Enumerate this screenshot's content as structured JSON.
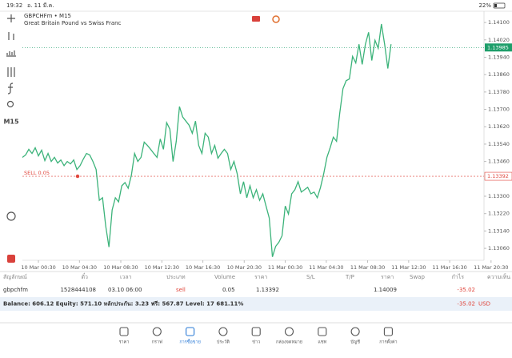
{
  "status_bar": {
    "time": "19:32",
    "date": "อ. 11 มี.ค.",
    "battery": "22%"
  },
  "chart_data": {
    "type": "line",
    "title": "GBPCHFm • M15",
    "subtitle": "Great Britain Pound vs Swiss Franc",
    "timeframe": "M15",
    "color": "#3cb37a",
    "values": [
      1.13479,
      1.1349,
      1.13516,
      1.13497,
      1.13523,
      1.13486,
      1.13512,
      1.13464,
      1.13497,
      1.1346,
      1.13479,
      1.13453,
      1.13467,
      1.13441,
      1.1346,
      1.13449,
      1.13467,
      1.13423,
      1.13441,
      1.13471,
      1.13497,
      1.1349,
      1.1346,
      1.13423,
      1.13281,
      1.13293,
      1.13162,
      1.13066,
      1.13237,
      1.13293,
      1.13274,
      1.13348,
      1.13363,
      1.13337,
      1.13397,
      1.13497,
      1.1346,
      1.13479,
      1.13549,
      1.13534,
      1.13516,
      1.13497,
      1.13479,
      1.13564,
      1.13516,
      1.13639,
      1.13609,
      1.1346,
      1.13553,
      1.13713,
      1.13665,
      1.13646,
      1.13627,
      1.1359,
      1.13646,
      1.13534,
      1.13497,
      1.1359,
      1.13572,
      1.13497,
      1.13534,
      1.13475,
      1.13497,
      1.13516,
      1.13497,
      1.13423,
      1.1346,
      1.13404,
      1.13311,
      1.13367,
      1.13293,
      1.13348,
      1.13293,
      1.1333,
      1.13281,
      1.13311,
      1.13255,
      1.132,
      1.13021,
      1.13069,
      1.13088,
      1.13118,
      1.13255,
      1.13218,
      1.13311,
      1.1333,
      1.13367,
      1.13319,
      1.1333,
      1.13341,
      1.13311,
      1.13319,
      1.13293,
      1.13341,
      1.13404,
      1.13479,
      1.13523,
      1.13572,
      1.13553,
      1.13683,
      1.13795,
      1.13832,
      1.1384,
      1.13944,
      1.13914,
      1.14,
      1.13907,
      1.14,
      1.14055,
      1.13925,
      1.14018,
      1.13981,
      1.14093,
      1.14,
      1.13888,
      1.14
    ],
    "xlim": [
      0,
      144
    ],
    "xticks": [
      {
        "value": 5,
        "label": "10 Mar 00:30"
      },
      {
        "value": 17.8,
        "label": "10 Mar 04:30"
      },
      {
        "value": 30.7,
        "label": "10 Mar 08:30"
      },
      {
        "value": 43.5,
        "label": "10 Mar 12:30"
      },
      {
        "value": 56.3,
        "label": "10 Mar 16:30"
      },
      {
        "value": 69.2,
        "label": "10 Mar 20:30"
      },
      {
        "value": 82,
        "label": "11 Mar 00:30"
      },
      {
        "value": 94.8,
        "label": "11 Mar 04:30"
      },
      {
        "value": 107.7,
        "label": "11 Mar 08:30"
      },
      {
        "value": 120.5,
        "label": "11 Mar 12:30"
      },
      {
        "value": 133.3,
        "label": "11 Mar 16:30"
      },
      {
        "value": 146.2,
        "label": "11 Mar 20:30"
      }
    ],
    "ylim": [
      1.13005,
      1.14152
    ],
    "yticks": [
      {
        "value": 1.141,
        "label": "1.14100"
      },
      {
        "value": 1.1402,
        "label": "1.14020"
      },
      {
        "value": 1.1394,
        "label": "1.13940"
      },
      {
        "value": 1.1386,
        "label": "1.13860"
      },
      {
        "value": 1.1378,
        "label": "1.13780"
      },
      {
        "value": 1.137,
        "label": "1.13700"
      },
      {
        "value": 1.1362,
        "label": "1.13620"
      },
      {
        "value": 1.1354,
        "label": "1.13540"
      },
      {
        "value": 1.1346,
        "label": "1.13460"
      },
      {
        "value": 1.133,
        "label": "1.13300"
      },
      {
        "value": 1.1322,
        "label": "1.13220"
      },
      {
        "value": 1.1314,
        "label": "1.13140"
      },
      {
        "value": 1.1306,
        "label": "1.13060"
      }
    ],
    "current_price": 1.13985,
    "current_color": "#1e9e6a",
    "order": {
      "label": "SELL 0.05",
      "price": 1.13392,
      "color": "#e0463c"
    }
  },
  "table": {
    "headers": [
      "สัญลักษณ์",
      "ตั๋ว",
      "เวลา",
      "ประเภท",
      "Volume",
      "ราคา",
      "S/L",
      "T/P",
      "ราคา",
      "Swap",
      "กำไร",
      "ความเห็น"
    ],
    "row": [
      "gbpchfm",
      "1528444108",
      "03.10 06:00",
      "sell",
      "0.05",
      "1.13392",
      "",
      "",
      "1.14009",
      "",
      "-35.02",
      ""
    ]
  },
  "balance": {
    "text": "Balance: 606.12 Equity: 571.10 หลักประกัน: 3.23 ฟรี: 567.87 Level: 17 681.11%",
    "profit": "-35.02",
    "currency": "USD"
  },
  "nav": [
    "ราคา",
    "กราฟ",
    "การซื้อขาย",
    "ประวัติ",
    "ข่าว",
    "กล่องจดหมาย",
    "แชท",
    "บัญชี",
    "การตั้งค่า"
  ],
  "nav_active": 2
}
